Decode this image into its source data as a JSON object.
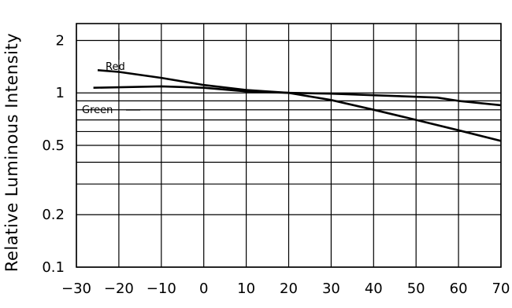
{
  "chart_data": {
    "type": "line",
    "xlabel": "",
    "ylabel": "Relative Luminous Intensity",
    "xlim": [
      -30,
      70
    ],
    "ylim": [
      0.1,
      2.5
    ],
    "yscale": "log",
    "grid": true,
    "x_ticks": [
      -30,
      -20,
      -10,
      0,
      10,
      20,
      30,
      40,
      50,
      60,
      70
    ],
    "x_tick_labels": [
      "−30",
      "−20",
      "−10",
      "0",
      "10",
      "20",
      "30",
      "40",
      "50",
      "60",
      "70"
    ],
    "y_tick_labels": [
      {
        "value": 0.1,
        "label": "0.1"
      },
      {
        "value": 0.2,
        "label": "0.2"
      },
      {
        "value": 0.5,
        "label": "0.5"
      },
      {
        "value": 1,
        "label": "1"
      },
      {
        "value": 2,
        "label": "2"
      }
    ],
    "y_gridlines": [
      0.1,
      0.2,
      0.3,
      0.4,
      0.5,
      0.6,
      0.7,
      0.8,
      0.9,
      1,
      2
    ],
    "series": [
      {
        "name": "Red",
        "x": [
          -25,
          -20,
          -10,
          0,
          10,
          20,
          30,
          40,
          50,
          60,
          70
        ],
        "y": [
          1.35,
          1.32,
          1.22,
          1.11,
          1.04,
          1.0,
          0.91,
          0.8,
          0.7,
          0.61,
          0.53
        ]
      },
      {
        "name": "Green",
        "x": [
          -26,
          -10,
          0,
          10,
          20,
          30,
          40,
          50,
          55,
          60,
          70
        ],
        "y": [
          1.07,
          1.09,
          1.07,
          1.02,
          1.0,
          0.99,
          0.97,
          0.95,
          0.94,
          0.9,
          0.85
        ]
      }
    ]
  }
}
